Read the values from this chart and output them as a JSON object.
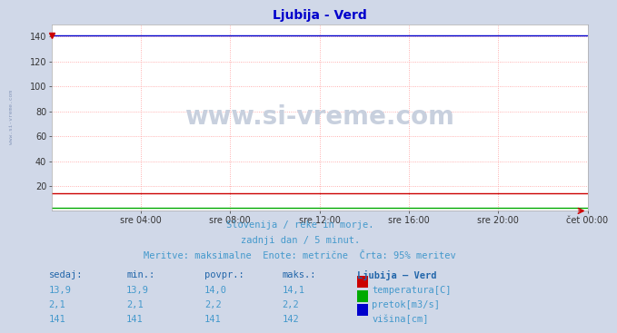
{
  "title": "Ljubija - Verd",
  "title_color": "#0000cc",
  "bg_color": "#d0d8e8",
  "plot_bg_color": "#ffffff",
  "x_ticks_labels": [
    "sre 04:00",
    "sre 08:00",
    "sre 12:00",
    "sre 16:00",
    "sre 20:00",
    "čet 00:00"
  ],
  "x_ticks_fracs": [
    0.1667,
    0.3333,
    0.5,
    0.6667,
    0.8333,
    1.0
  ],
  "y_ticks": [
    20,
    40,
    60,
    80,
    100,
    120,
    140
  ],
  "ylim": [
    0,
    150
  ],
  "n_points": 288,
  "grid_color": "#ff9999",
  "temp_value": 14.0,
  "temp_color": "#cc0000",
  "pretok_value": 2.2,
  "pretok_color": "#00aa00",
  "visina_value": 141.0,
  "visina_color": "#0000cc",
  "subtitle1": "Slovenija / reke in morje.",
  "subtitle2": "zadnji dan / 5 minut.",
  "subtitle3": "Meritve: maksimalne  Enote: metrične  Črta: 95% meritev",
  "subtitle_color": "#4499cc",
  "table_header_color": "#2266aa",
  "table_color": "#4499cc",
  "table_headers": [
    "sedaj:",
    "min.:",
    "povpr.:",
    "maks.:",
    "Ljubija – Verd"
  ],
  "table_rows": [
    [
      "13,9",
      "13,9",
      "14,0",
      "14,1",
      "temperatura[C]",
      "#cc0000"
    ],
    [
      "2,1",
      "2,1",
      "2,2",
      "2,2",
      "pretok[m3/s]",
      "#00aa00"
    ],
    [
      "141",
      "141",
      "141",
      "142",
      "višina[cm]",
      "#0000cc"
    ]
  ],
  "watermark": "www.si-vreme.com",
  "watermark_color": "#c8d0de",
  "left_label": "www.si-vreme.com",
  "left_label_color": "#8899bb",
  "arrow_color": "#cc0000"
}
